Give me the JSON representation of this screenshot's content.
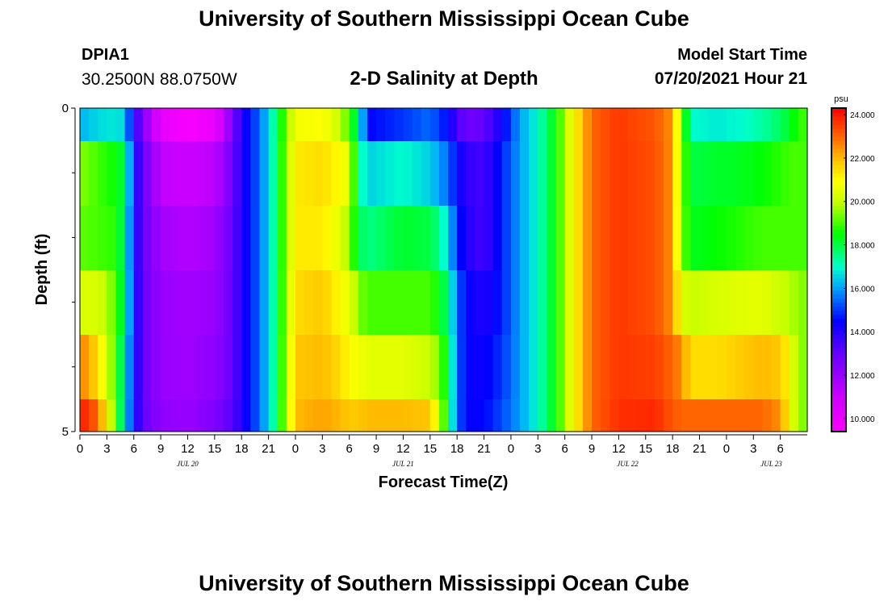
{
  "header": {
    "title": "University of Southern Mississippi Ocean Cube",
    "station_id": "DPIA1",
    "coordinates": "30.2500N  88.0750W",
    "chart_subtitle": "2-D Salinity at Depth",
    "model_start_label": "Model Start Time",
    "model_start_value": "07/20/2021 Hour 21"
  },
  "footer": {
    "title": "University of Southern Mississippi Ocean Cube"
  },
  "chart_data": {
    "type": "heatmap",
    "title": "2-D Salinity at Depth",
    "xlabel": "Forecast Time(Z)",
    "ylabel": "Depth (ft)",
    "units": "psu",
    "ylim": [
      0,
      5
    ],
    "y_tick_labels": [
      "0",
      "5"
    ],
    "y_ticks_minor": [
      1,
      2,
      3,
      4
    ],
    "x_hours_from_start": 81,
    "x_tick_labels": [
      "0",
      "3",
      "6",
      "9",
      "12",
      "15",
      "18",
      "21",
      "0",
      "3",
      "6",
      "9",
      "12",
      "15",
      "18",
      "21",
      "0",
      "3",
      "6",
      "9",
      "12",
      "15",
      "18",
      "21",
      "0",
      "3",
      "6"
    ],
    "date_labels": [
      {
        "label": "JUL 20",
        "hour": 12
      },
      {
        "label": "JUL 21",
        "hour": 36
      },
      {
        "label": "JUL 22",
        "hour": 61
      },
      {
        "label": "JUL 23",
        "hour": 77
      }
    ],
    "depth_levels": [
      "0-0.5",
      "0.5-1.5",
      "1.5-2.5",
      "2.5-3.5",
      "3.5-4.5",
      "4.5-5"
    ],
    "colorbar": {
      "min": 9.4,
      "max": 24.3,
      "tick_values": [
        10,
        12,
        14,
        16,
        18,
        20,
        22,
        24
      ],
      "tick_labels": [
        "10.000",
        "12.000",
        "14.000",
        "16.000",
        "18.000",
        "20.000",
        "22.000",
        "24.000"
      ]
    },
    "color_stops": [
      {
        "v": 9.4,
        "c": "#ff00ff"
      },
      {
        "v": 11.0,
        "c": "#cc00ff"
      },
      {
        "v": 13.0,
        "c": "#6600ff"
      },
      {
        "v": 14.5,
        "c": "#0000ff"
      },
      {
        "v": 16.0,
        "c": "#00a0ff"
      },
      {
        "v": 17.0,
        "c": "#00ffcc"
      },
      {
        "v": 18.5,
        "c": "#00ff00"
      },
      {
        "v": 20.0,
        "c": "#c8ff00"
      },
      {
        "v": 21.0,
        "c": "#ffff00"
      },
      {
        "v": 22.0,
        "c": "#ffbb00"
      },
      {
        "v": 23.0,
        "c": "#ff6600"
      },
      {
        "v": 24.3,
        "c": "#ff0000"
      }
    ],
    "keyframes": [
      {
        "h": 0,
        "v": [
          16.2,
          19.5,
          19.2,
          20.3,
          22.8,
          24.0
        ]
      },
      {
        "h": 2,
        "v": [
          16.6,
          19.0,
          19.0,
          20.3,
          21.5,
          23.0
        ]
      },
      {
        "h": 4,
        "v": [
          16.8,
          18.5,
          18.8,
          19.2,
          19.0,
          19.0
        ]
      },
      {
        "h": 5,
        "v": [
          16.5,
          18.0,
          17.5,
          17.5,
          17.0,
          16.8
        ]
      },
      {
        "h": 6,
        "v": [
          14.0,
          14.3,
          14.3,
          14.5,
          14.5,
          14.5
        ]
      },
      {
        "h": 7,
        "v": [
          12.5,
          13.0,
          13.0,
          13.0,
          13.0,
          13.0
        ]
      },
      {
        "h": 9,
        "v": [
          10.2,
          11.2,
          11.8,
          12.0,
          12.0,
          12.2
        ]
      },
      {
        "h": 12,
        "v": [
          9.6,
          11.0,
          11.5,
          11.8,
          11.9,
          12.0
        ]
      },
      {
        "h": 15,
        "v": [
          10.0,
          11.3,
          11.8,
          12.0,
          12.2,
          12.5
        ]
      },
      {
        "h": 17,
        "v": [
          12.5,
          12.8,
          13.0,
          13.0,
          13.0,
          13.2
        ]
      },
      {
        "h": 18,
        "v": [
          14.0,
          14.0,
          14.0,
          14.0,
          14.0,
          14.0
        ]
      },
      {
        "h": 20,
        "v": [
          15.5,
          15.5,
          15.5,
          15.5,
          15.5,
          15.5
        ]
      },
      {
        "h": 21,
        "v": [
          16.5,
          16.5,
          16.5,
          16.5,
          16.5,
          16.5
        ]
      },
      {
        "h": 22,
        "v": [
          18.0,
          18.0,
          18.0,
          18.0,
          18.0,
          18.0
        ]
      },
      {
        "h": 24,
        "v": [
          20.8,
          21.3,
          21.3,
          21.5,
          21.8,
          22.0
        ]
      },
      {
        "h": 27,
        "v": [
          21.0,
          21.5,
          21.3,
          21.8,
          22.0,
          22.3
        ]
      },
      {
        "h": 29,
        "v": [
          20.0,
          21.0,
          20.5,
          21.0,
          21.5,
          22.0
        ]
      },
      {
        "h": 30,
        "v": [
          19.0,
          20.5,
          19.5,
          20.5,
          21.0,
          21.8
        ]
      },
      {
        "h": 31,
        "v": [
          17.5,
          17.5,
          18.0,
          19.5,
          20.8,
          21.8
        ]
      },
      {
        "h": 32,
        "v": [
          14.5,
          16.5,
          17.5,
          19.0,
          20.5,
          22.0
        ]
      },
      {
        "h": 36,
        "v": [
          15.0,
          17.0,
          18.2,
          19.0,
          20.5,
          22.0
        ]
      },
      {
        "h": 39,
        "v": [
          15.5,
          16.5,
          18.0,
          19.0,
          20.0,
          21.8
        ]
      },
      {
        "h": 40,
        "v": [
          15.0,
          16.0,
          17.5,
          18.5,
          19.5,
          20.5
        ]
      },
      {
        "h": 41,
        "v": [
          14.5,
          15.5,
          16.5,
          17.5,
          18.0,
          17.8
        ]
      },
      {
        "h": 42,
        "v": [
          13.5,
          14.5,
          15.0,
          15.5,
          15.5,
          15.5
        ]
      },
      {
        "h": 43,
        "v": [
          12.8,
          13.8,
          14.0,
          14.5,
          14.5,
          14.5
        ]
      },
      {
        "h": 45,
        "v": [
          13.0,
          13.5,
          13.5,
          14.0,
          14.3,
          14.5
        ]
      },
      {
        "h": 47,
        "v": [
          14.3,
          14.8,
          14.8,
          14.8,
          15.0,
          15.2
        ]
      },
      {
        "h": 49,
        "v": [
          16.0,
          16.0,
          16.0,
          16.0,
          16.0,
          16.0
        ]
      },
      {
        "h": 51,
        "v": [
          17.0,
          17.0,
          17.0,
          17.0,
          17.0,
          17.0
        ]
      },
      {
        "h": 53,
        "v": [
          18.5,
          18.5,
          18.5,
          18.5,
          18.5,
          18.5
        ]
      },
      {
        "h": 55,
        "v": [
          21.0,
          21.0,
          21.0,
          21.0,
          21.0,
          21.0
        ]
      },
      {
        "h": 57,
        "v": [
          23.0,
          23.0,
          23.0,
          23.0,
          23.0,
          23.0
        ]
      },
      {
        "h": 60,
        "v": [
          23.6,
          23.6,
          23.6,
          23.6,
          23.6,
          23.7
        ]
      },
      {
        "h": 64,
        "v": [
          23.2,
          23.3,
          23.3,
          23.3,
          23.5,
          23.8
        ]
      },
      {
        "h": 66,
        "v": [
          22.5,
          22.5,
          22.5,
          22.5,
          23.0,
          23.2
        ]
      },
      {
        "h": 67,
        "v": [
          19.5,
          19.5,
          19.5,
          20.5,
          22.5,
          23.0
        ]
      },
      {
        "h": 68,
        "v": [
          17.0,
          18.0,
          18.3,
          20.0,
          21.5,
          23.0
        ]
      },
      {
        "h": 71,
        "v": [
          16.8,
          18.2,
          18.5,
          20.3,
          21.5,
          23.0
        ]
      },
      {
        "h": 74,
        "v": [
          17.0,
          18.3,
          18.8,
          20.5,
          21.8,
          23.0
        ]
      },
      {
        "h": 76,
        "v": [
          17.3,
          18.5,
          19.0,
          20.5,
          22.0,
          23.0
        ]
      },
      {
        "h": 78,
        "v": [
          17.8,
          18.8,
          19.0,
          20.0,
          21.8,
          22.5
        ]
      },
      {
        "h": 79,
        "v": [
          18.2,
          19.0,
          19.0,
          20.0,
          21.0,
          21.0
        ]
      },
      {
        "h": 80,
        "v": [
          18.8,
          19.0,
          19.0,
          19.5,
          19.5,
          19.5
        ]
      },
      {
        "h": 81,
        "v": [
          19.0,
          19.0,
          19.0,
          19.5,
          19.5,
          19.5
        ]
      }
    ]
  }
}
